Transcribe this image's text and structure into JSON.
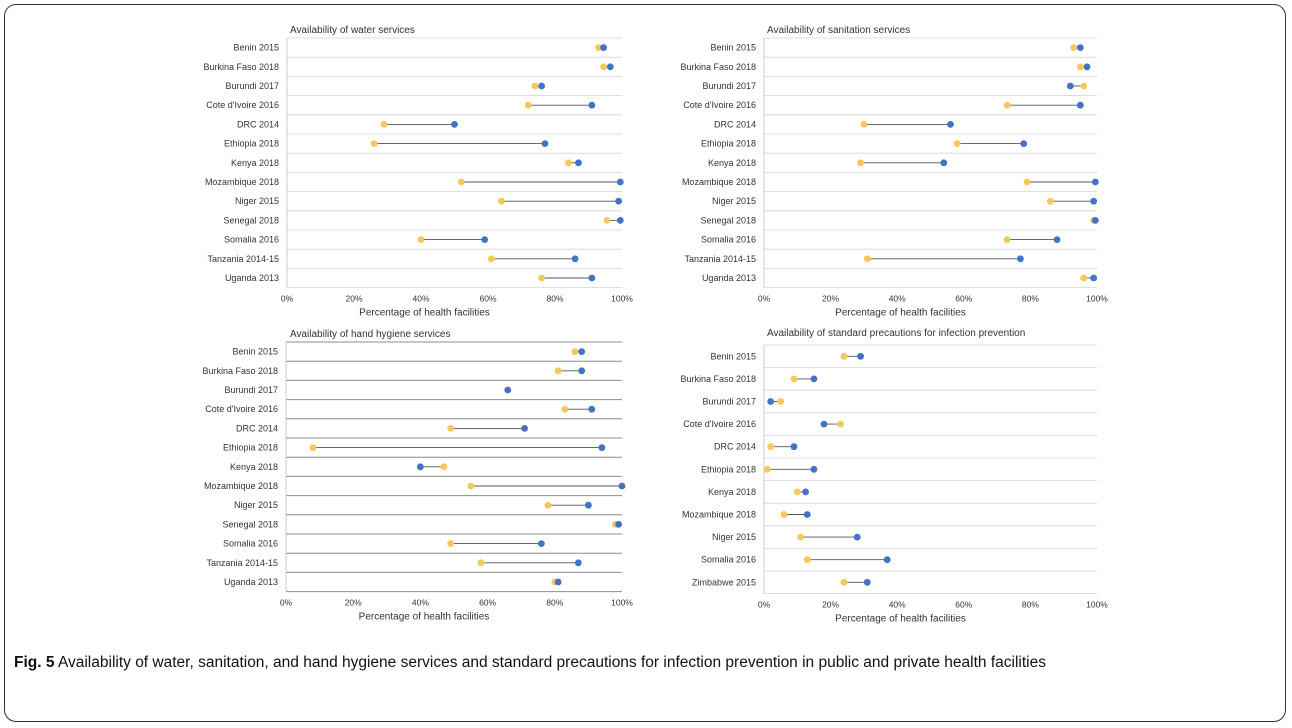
{
  "caption": {
    "label": "Fig. 5",
    "text": "Availability of water, sanitation, and hand hygiene services and standard precautions for infection prevention in public and private health facilities"
  },
  "colors": {
    "public": "#F5C85A",
    "private": "#4472C4",
    "connector": "#555555"
  },
  "chart_data": [
    {
      "type": "dumbbell",
      "title": "Availability of water services",
      "xlabel": "Percentage of health facilities",
      "xlim": [
        0,
        100
      ],
      "xticks": [
        "0%",
        "20%",
        "40%",
        "60%",
        "80%",
        "100%"
      ],
      "grid": "horizontal",
      "categories": [
        "Benin 2015",
        "Burkina Faso 2018",
        "Burundi 2017",
        "Cote d'Ivoire 2016",
        "DRC 2014",
        "Ethiopia 2018",
        "Kenya 2018",
        "Mozambique 2018",
        "Niger 2015",
        "Senegal 2018",
        "Somalia 2016",
        "Tanzania 2014-15",
        "Uganda 2013"
      ],
      "series": [
        {
          "color": "#F5C85A",
          "values": [
            93,
            94.5,
            74,
            72,
            29,
            26,
            84,
            52,
            64,
            95.5,
            40,
            61,
            76
          ]
        },
        {
          "color": "#4472C4",
          "values": [
            94.5,
            96.5,
            76,
            91,
            50,
            77,
            87,
            99.5,
            99,
            99.5,
            59,
            86,
            91
          ]
        }
      ]
    },
    {
      "type": "dumbbell",
      "title": "Availability of sanitation services",
      "xlabel": "Percentage of health facilities",
      "xlim": [
        0,
        100
      ],
      "xticks": [
        "0%",
        "20%",
        "40%",
        "60%",
        "80%",
        "100%"
      ],
      "grid": "horizontal",
      "categories": [
        "Benin 2015",
        "Burkina Faso 2018",
        "Burundi 2017",
        "Cote d'Ivoire 2016",
        "DRC 2014",
        "Ethiopia 2018",
        "Kenya 2018",
        "Mozambique 2018",
        "Niger 2015",
        "Senegal 2018",
        "Somalia 2016",
        "Tanzania 2014-15",
        "Uganda 2013"
      ],
      "series": [
        {
          "color": "#F5C85A",
          "values": [
            93,
            95,
            96,
            73,
            30,
            58,
            29,
            79,
            86,
            99,
            73,
            31,
            96
          ]
        },
        {
          "color": "#4472C4",
          "values": [
            95,
            97,
            92,
            95,
            56,
            78,
            54,
            99.5,
            99,
            99.5,
            88,
            77,
            99
          ]
        }
      ]
    },
    {
      "type": "dumbbell",
      "title": "Availability of hand hygiene services",
      "xlabel": "Percentage of health facilities",
      "xlim": [
        0,
        100
      ],
      "xticks": [
        "0%",
        "20%",
        "40%",
        "60%",
        "80%",
        "100%"
      ],
      "grid": "horizontal",
      "categories": [
        "Benin 2015",
        "Burkina Faso 2018",
        "Burundi 2017",
        "Cote d'Ivoire 2016",
        "DRC 2014",
        "Ethiopia 2018",
        "Kenya 2018",
        "Mozambique 2018",
        "Niger 2015",
        "Senegal 2018",
        "Somalia 2016",
        "Tanzania 2014-15",
        "Uganda 2013"
      ],
      "series": [
        {
          "color": "#F5C85A",
          "values": [
            86,
            81,
            66,
            83,
            49,
            8,
            47,
            55,
            78,
            98,
            49,
            58,
            80
          ]
        },
        {
          "color": "#4472C4",
          "values": [
            88,
            88,
            66,
            91,
            71,
            94,
            40,
            100,
            90,
            99,
            76,
            87,
            81
          ]
        }
      ]
    },
    {
      "type": "dumbbell",
      "title": "Availability of standard precautions for infection prevention",
      "xlabel": "Percentage of health facilities",
      "xlim": [
        0,
        100
      ],
      "xticks": [
        "0%",
        "20%",
        "40%",
        "60%",
        "80%",
        "100%"
      ],
      "grid": "horizontal",
      "categories": [
        "Benin 2015",
        "Burkina Faso 2018",
        "Burundi 2017",
        "Cote d'Ivoire 2016",
        "DRC 2014",
        "Ethiopia 2018",
        "Kenya 2018",
        "Mozambique 2018",
        "Niger 2015",
        "Somalia 2016",
        "Zimbabwe 2015"
      ],
      "series": [
        {
          "color": "#F5C85A",
          "values": [
            24,
            9,
            5,
            23,
            2,
            1,
            10,
            6,
            11,
            13,
            24
          ]
        },
        {
          "color": "#4472C4",
          "values": [
            29,
            15,
            2,
            18,
            9,
            15,
            12.5,
            13,
            28,
            37,
            31
          ]
        }
      ]
    }
  ]
}
